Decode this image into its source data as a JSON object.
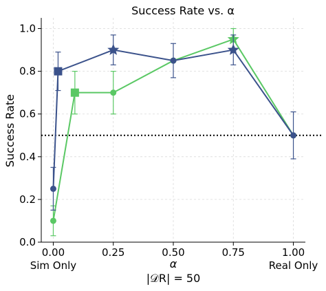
{
  "chart_data": {
    "type": "line",
    "title": "Success Rate vs. α",
    "ylabel": "Success Rate",
    "xlabel_main": "α",
    "xlabel_sub": "|𝒟R| = 50",
    "xlim": [
      -0.05,
      1.05
    ],
    "ylim": [
      0.0,
      1.05
    ],
    "x_ticks": [
      {
        "value": 0.0,
        "label": "0.00",
        "sublabel": "Sim Only"
      },
      {
        "value": 0.25,
        "label": "0.25",
        "sublabel": ""
      },
      {
        "value": 0.5,
        "label": "0.50",
        "sublabel": ""
      },
      {
        "value": 0.75,
        "label": "0.75",
        "sublabel": ""
      },
      {
        "value": 1.0,
        "label": "1.00",
        "sublabel": "Real Only"
      }
    ],
    "y_ticks": [
      {
        "value": 0.0,
        "label": "0.0"
      },
      {
        "value": 0.2,
        "label": "0.2"
      },
      {
        "value": 0.4,
        "label": "0.4"
      },
      {
        "value": 0.6,
        "label": "0.6"
      },
      {
        "value": 0.8,
        "label": "0.8"
      },
      {
        "value": 1.0,
        "label": "1.0"
      }
    ],
    "grid": true,
    "reference_line": {
      "y": 0.5,
      "style": "dotted",
      "color": "#000000"
    },
    "series": [
      {
        "color": "#5ac864",
        "points": [
          {
            "x": 0.0,
            "y": 0.1,
            "err": 0.07,
            "marker": "circle"
          },
          {
            "x": 0.09,
            "y": 0.7,
            "err": 0.1,
            "marker": "square"
          },
          {
            "x": 0.25,
            "y": 0.7,
            "err": 0.1,
            "marker": "circle"
          },
          {
            "x": 0.5,
            "y": 0.85,
            "err": 0.0,
            "marker": "circle"
          },
          {
            "x": 0.75,
            "y": 0.95,
            "err": 0.05,
            "marker": "star"
          },
          {
            "x": 1.0,
            "y": 0.5,
            "err": 0.0,
            "marker": "circle"
          }
        ]
      },
      {
        "color": "#3b528b",
        "points": [
          {
            "x": 0.0,
            "y": 0.25,
            "err": 0.1,
            "marker": "circle"
          },
          {
            "x": 0.02,
            "y": 0.8,
            "err": 0.09,
            "marker": "square"
          },
          {
            "x": 0.25,
            "y": 0.9,
            "err": 0.07,
            "marker": "star"
          },
          {
            "x": 0.5,
            "y": 0.85,
            "err": 0.08,
            "marker": "circle"
          },
          {
            "x": 0.75,
            "y": 0.9,
            "err": 0.07,
            "marker": "star"
          },
          {
            "x": 1.0,
            "y": 0.5,
            "err": 0.11,
            "marker": "circle"
          }
        ]
      }
    ]
  }
}
